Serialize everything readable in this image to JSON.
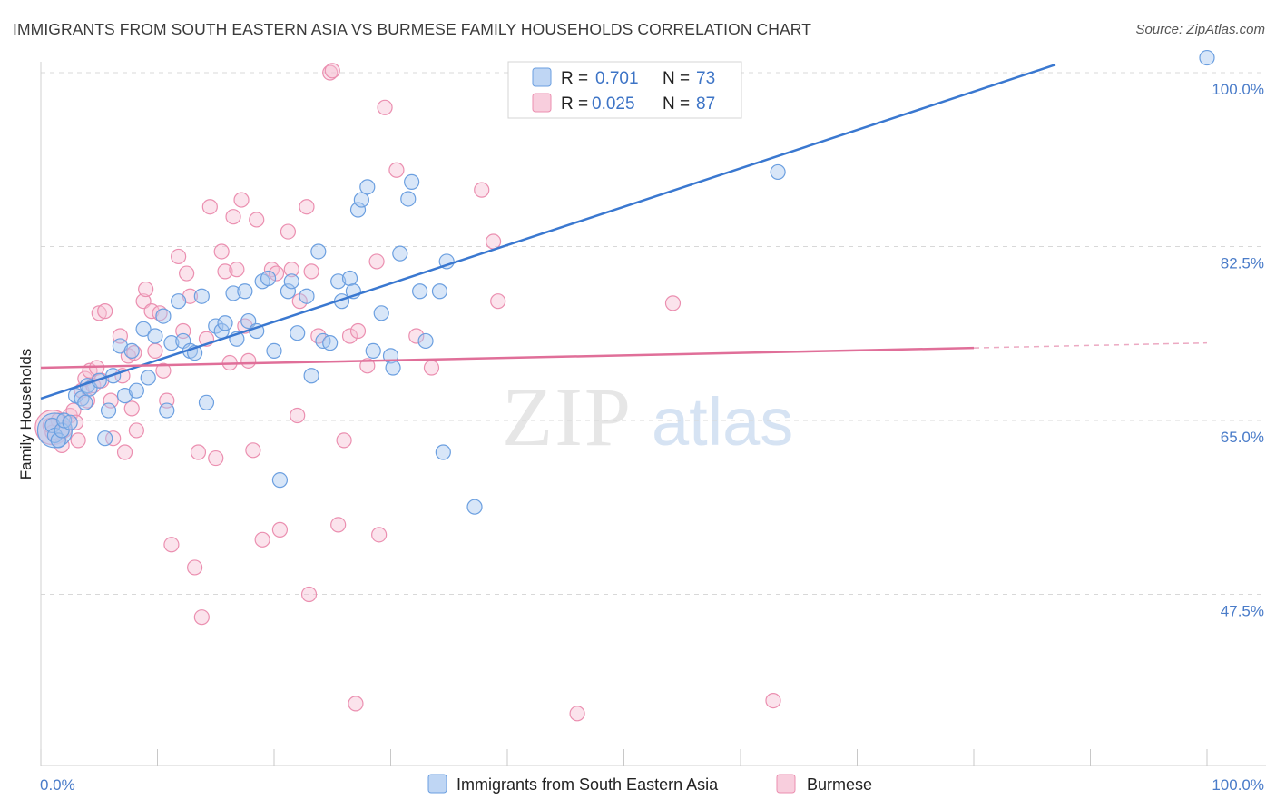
{
  "header": {
    "title": "IMMIGRANTS FROM SOUTH EASTERN ASIA VS BURMESE FAMILY HOUSEHOLDS CORRELATION CHART",
    "source": "Source: ZipAtlas.com"
  },
  "watermark": {
    "zip": "ZIP",
    "atlas": "atlas"
  },
  "colors": {
    "blue": "#6b9fe0",
    "blue_fill": "#a9c8f0",
    "blue_line": "#3a78d0",
    "pink": "#eb8fb0",
    "pink_fill": "#f6c2d4",
    "pink_line": "#e06f99",
    "grid": "#d8d8d8",
    "tick_label": "#4a7cc9"
  },
  "chart_data": {
    "type": "scatter",
    "xlabel": "",
    "ylabel": "Family Households",
    "xlim": [
      0,
      100
    ],
    "ylim": [
      30,
      103
    ],
    "x_tick_labels": [
      "0.0%",
      "100.0%"
    ],
    "y_ticks": [
      47.5,
      65.0,
      82.5,
      100.0
    ],
    "y_tick_labels": [
      "47.5%",
      "65.0%",
      "82.5%",
      "100.0%"
    ],
    "grid": true,
    "legend_top": [
      {
        "r_label": "R =",
        "r_value": "0.701",
        "n_label": "N =",
        "n_value": "73",
        "color": "blue"
      },
      {
        "r_label": "R =",
        "r_value": "0.025",
        "n_label": "N =",
        "n_value": "87",
        "color": "pink"
      }
    ],
    "series": [
      {
        "name": "Immigrants from South Eastern Asia",
        "color": "blue",
        "trend": {
          "x": [
            0,
            87
          ],
          "y": [
            67.2,
            100.8
          ],
          "dashed_to": 87
        },
        "points": [
          [
            1.0,
            64.5
          ],
          [
            1.2,
            63.5
          ],
          [
            1.5,
            63.0
          ],
          [
            1.8,
            64.0
          ],
          [
            2.0,
            65.0
          ],
          [
            2.5,
            64.8
          ],
          [
            3.0,
            67.5
          ],
          [
            3.5,
            67.2
          ],
          [
            3.8,
            66.8
          ],
          [
            4.0,
            68.5
          ],
          [
            4.2,
            68.2
          ],
          [
            5.0,
            69.0
          ],
          [
            5.5,
            63.2
          ],
          [
            5.8,
            66.0
          ],
          [
            6.2,
            69.5
          ],
          [
            6.8,
            72.5
          ],
          [
            7.2,
            67.5
          ],
          [
            7.8,
            72.0
          ],
          [
            8.2,
            68.0
          ],
          [
            8.8,
            74.2
          ],
          [
            9.2,
            69.3
          ],
          [
            9.8,
            73.5
          ],
          [
            10.5,
            75.5
          ],
          [
            10.8,
            66.0
          ],
          [
            11.2,
            72.8
          ],
          [
            11.8,
            77.0
          ],
          [
            12.2,
            73.0
          ],
          [
            12.8,
            72.0
          ],
          [
            13.2,
            71.8
          ],
          [
            13.8,
            77.5
          ],
          [
            14.2,
            66.8
          ],
          [
            15.0,
            74.5
          ],
          [
            15.5,
            74.0
          ],
          [
            15.8,
            74.8
          ],
          [
            16.5,
            77.8
          ],
          [
            16.8,
            73.2
          ],
          [
            17.5,
            78.0
          ],
          [
            17.8,
            75.0
          ],
          [
            18.5,
            74.0
          ],
          [
            19.0,
            79.0
          ],
          [
            19.5,
            79.3
          ],
          [
            20.0,
            72.0
          ],
          [
            20.5,
            59.0
          ],
          [
            21.2,
            78.0
          ],
          [
            21.5,
            79.0
          ],
          [
            22.0,
            73.8
          ],
          [
            22.8,
            77.5
          ],
          [
            23.2,
            69.5
          ],
          [
            23.8,
            82.0
          ],
          [
            24.2,
            73.0
          ],
          [
            24.8,
            72.8
          ],
          [
            25.5,
            79.0
          ],
          [
            25.8,
            77.0
          ],
          [
            26.5,
            79.3
          ],
          [
            26.8,
            78.0
          ],
          [
            27.2,
            86.2
          ],
          [
            27.5,
            87.2
          ],
          [
            28.0,
            88.5
          ],
          [
            28.5,
            72.0
          ],
          [
            29.2,
            75.8
          ],
          [
            30.0,
            71.5
          ],
          [
            30.2,
            70.3
          ],
          [
            30.8,
            81.8
          ],
          [
            31.5,
            87.3
          ],
          [
            31.8,
            89.0
          ],
          [
            32.5,
            78.0
          ],
          [
            33.0,
            73.0
          ],
          [
            34.2,
            78.0
          ],
          [
            34.5,
            61.8
          ],
          [
            34.8,
            81.0
          ],
          [
            37.2,
            56.3
          ],
          [
            63.2,
            90.0
          ],
          [
            100.0,
            101.5
          ]
        ],
        "big_point": [
          1.2,
          64.0
        ]
      },
      {
        "name": "Burmese",
        "color": "pink",
        "trend": {
          "x": [
            0,
            80
          ],
          "y": [
            70.3,
            72.3
          ],
          "dashed_to": 100,
          "dashed_y": 72.8
        },
        "points": [
          [
            1.0,
            63.8
          ],
          [
            1.5,
            65.0
          ],
          [
            1.8,
            62.5
          ],
          [
            2.0,
            64.0
          ],
          [
            2.5,
            65.5
          ],
          [
            2.8,
            66.0
          ],
          [
            3.0,
            64.8
          ],
          [
            3.2,
            63.0
          ],
          [
            3.5,
            68.0
          ],
          [
            3.8,
            69.2
          ],
          [
            4.0,
            67.0
          ],
          [
            4.2,
            70.0
          ],
          [
            4.5,
            68.5
          ],
          [
            4.8,
            70.3
          ],
          [
            5.0,
            75.8
          ],
          [
            5.2,
            69.0
          ],
          [
            5.5,
            76.0
          ],
          [
            6.0,
            67.0
          ],
          [
            6.2,
            63.2
          ],
          [
            6.8,
            73.5
          ],
          [
            7.0,
            69.5
          ],
          [
            7.2,
            61.8
          ],
          [
            7.5,
            71.5
          ],
          [
            7.8,
            66.2
          ],
          [
            8.0,
            71.8
          ],
          [
            8.2,
            64.0
          ],
          [
            8.8,
            77.0
          ],
          [
            9.0,
            78.2
          ],
          [
            9.5,
            76.0
          ],
          [
            9.8,
            72.0
          ],
          [
            10.2,
            75.8
          ],
          [
            10.5,
            70.0
          ],
          [
            10.8,
            67.0
          ],
          [
            11.2,
            52.5
          ],
          [
            11.8,
            81.5
          ],
          [
            12.2,
            74.0
          ],
          [
            12.5,
            79.8
          ],
          [
            12.8,
            77.5
          ],
          [
            13.2,
            50.2
          ],
          [
            13.5,
            61.8
          ],
          [
            13.8,
            45.2
          ],
          [
            14.2,
            73.2
          ],
          [
            14.5,
            86.5
          ],
          [
            15.0,
            61.2
          ],
          [
            15.5,
            82.0
          ],
          [
            15.8,
            80.0
          ],
          [
            16.2,
            70.8
          ],
          [
            16.5,
            85.5
          ],
          [
            16.8,
            80.2
          ],
          [
            17.2,
            87.2
          ],
          [
            17.5,
            74.5
          ],
          [
            17.8,
            71.0
          ],
          [
            18.2,
            62.0
          ],
          [
            18.5,
            85.2
          ],
          [
            19.0,
            53.0
          ],
          [
            19.8,
            80.2
          ],
          [
            20.2,
            79.8
          ],
          [
            20.5,
            54.0
          ],
          [
            21.2,
            84.0
          ],
          [
            21.5,
            80.2
          ],
          [
            22.0,
            65.5
          ],
          [
            22.2,
            77.0
          ],
          [
            22.8,
            86.5
          ],
          [
            23.0,
            47.5
          ],
          [
            23.2,
            80.0
          ],
          [
            23.8,
            73.5
          ],
          [
            24.8,
            100.0
          ],
          [
            25.0,
            100.2
          ],
          [
            25.5,
            54.5
          ],
          [
            26.0,
            63.0
          ],
          [
            26.5,
            73.5
          ],
          [
            27.0,
            36.5
          ],
          [
            27.2,
            74.0
          ],
          [
            28.0,
            70.5
          ],
          [
            28.8,
            81.0
          ],
          [
            29.0,
            53.5
          ],
          [
            29.5,
            96.5
          ],
          [
            30.5,
            90.2
          ],
          [
            32.2,
            73.5
          ],
          [
            33.5,
            70.3
          ],
          [
            37.8,
            88.2
          ],
          [
            38.8,
            83.0
          ],
          [
            39.2,
            77.0
          ],
          [
            46.0,
            35.5
          ],
          [
            54.2,
            76.8
          ],
          [
            62.8,
            36.8
          ],
          [
            0.8,
            64.5
          ]
        ],
        "big_point": [
          1.0,
          64.3
        ]
      }
    ]
  },
  "bottom_legend": [
    {
      "label": "Immigrants from South Eastern Asia",
      "color": "blue"
    },
    {
      "label": "Burmese",
      "color": "pink"
    }
  ]
}
